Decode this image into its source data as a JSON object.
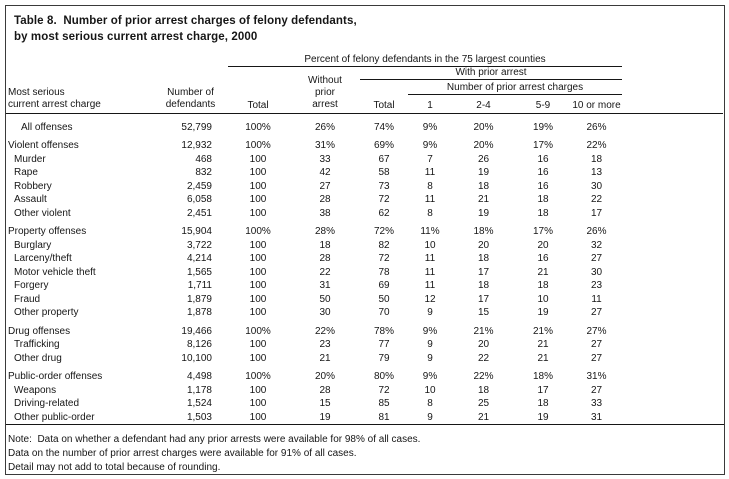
{
  "title": {
    "line1": "Table 8.  Number of prior arrest charges of felony defendants,",
    "line2": "by most serious current arrest charge, 2000"
  },
  "header": {
    "col_charge": "Most serious\ncurrent arrest charge",
    "col_defendants": "Number of\ndefendants",
    "span_percent": "Percent of felony defendants in the 75 largest counties",
    "col_total": "Total",
    "col_without": "Without\nprior\narrest",
    "span_with_prior": "With prior arrest",
    "col_with_total": "Total",
    "span_num_charges": "Number of prior arrest charges",
    "col_1": "1",
    "col_2_4": "2-4",
    "col_5_9": "5-9",
    "col_10_more": "10 or more"
  },
  "table": {
    "rows": [
      {
        "label": "All offenses",
        "type": "all",
        "values": [
          "52,799",
          "100%",
          "26%",
          "74%",
          "9%",
          "20%",
          "19%",
          "26%"
        ]
      },
      {
        "label": "Violent offenses",
        "type": "group",
        "values": [
          "12,932",
          "100%",
          "31%",
          "69%",
          "9%",
          "20%",
          "17%",
          "22%"
        ]
      },
      {
        "label": "Murder",
        "type": "leaf",
        "values": [
          "468",
          "100",
          "33",
          "67",
          "7",
          "26",
          "16",
          "18"
        ]
      },
      {
        "label": "Rape",
        "type": "leaf",
        "values": [
          "832",
          "100",
          "42",
          "58",
          "11",
          "19",
          "16",
          "13"
        ]
      },
      {
        "label": "Robbery",
        "type": "leaf",
        "values": [
          "2,459",
          "100",
          "27",
          "73",
          "8",
          "18",
          "16",
          "30"
        ]
      },
      {
        "label": "Assault",
        "type": "leaf",
        "values": [
          "6,058",
          "100",
          "28",
          "72",
          "11",
          "21",
          "18",
          "22"
        ]
      },
      {
        "label": "Other violent",
        "type": "leaf",
        "values": [
          "2,451",
          "100",
          "38",
          "62",
          "8",
          "19",
          "18",
          "17"
        ]
      },
      {
        "label": "Property offenses",
        "type": "group",
        "values": [
          "15,904",
          "100%",
          "28%",
          "72%",
          "11%",
          "18%",
          "17%",
          "26%"
        ]
      },
      {
        "label": "Burglary",
        "type": "leaf",
        "values": [
          "3,722",
          "100",
          "18",
          "82",
          "10",
          "20",
          "20",
          "32"
        ]
      },
      {
        "label": "Larceny/theft",
        "type": "leaf",
        "values": [
          "4,214",
          "100",
          "28",
          "72",
          "11",
          "18",
          "16",
          "27"
        ]
      },
      {
        "label": "Motor vehicle theft",
        "type": "leaf",
        "values": [
          "1,565",
          "100",
          "22",
          "78",
          "11",
          "17",
          "21",
          "30"
        ]
      },
      {
        "label": "Forgery",
        "type": "leaf",
        "values": [
          "1,711",
          "100",
          "31",
          "69",
          "11",
          "18",
          "18",
          "23"
        ]
      },
      {
        "label": "Fraud",
        "type": "leaf",
        "values": [
          "1,879",
          "100",
          "50",
          "50",
          "12",
          "17",
          "10",
          "11"
        ]
      },
      {
        "label": "Other property",
        "type": "leaf",
        "values": [
          "1,878",
          "100",
          "30",
          "70",
          "9",
          "15",
          "19",
          "27"
        ]
      },
      {
        "label": "Drug offenses",
        "type": "group",
        "values": [
          "19,466",
          "100%",
          "22%",
          "78%",
          "9%",
          "21%",
          "21%",
          "27%"
        ]
      },
      {
        "label": "Trafficking",
        "type": "leaf",
        "values": [
          "8,126",
          "100",
          "23",
          "77",
          "9",
          "20",
          "21",
          "27"
        ]
      },
      {
        "label": "Other drug",
        "type": "leaf",
        "values": [
          "10,100",
          "100",
          "21",
          "79",
          "9",
          "22",
          "21",
          "27"
        ]
      },
      {
        "label": "Public-order offenses",
        "type": "group",
        "values": [
          "4,498",
          "100%",
          "20%",
          "80%",
          "9%",
          "22%",
          "18%",
          "31%"
        ]
      },
      {
        "label": "Weapons",
        "type": "leaf",
        "values": [
          "1,178",
          "100",
          "28",
          "72",
          "10",
          "18",
          "17",
          "27"
        ]
      },
      {
        "label": "Driving-related",
        "type": "leaf",
        "values": [
          "1,524",
          "100",
          "15",
          "85",
          "8",
          "25",
          "18",
          "33"
        ]
      },
      {
        "label": "Other public-order",
        "type": "leaf",
        "values": [
          "1,503",
          "100",
          "19",
          "81",
          "9",
          "21",
          "19",
          "31"
        ]
      }
    ]
  },
  "notes": {
    "line1": "Note:  Data on whether a defendant had any prior arrests were available for 98% of all cases.",
    "line2": "Data on the number of prior arrest charges were available for 91% of all cases.",
    "line3": "Detail may not add to total because of rounding."
  },
  "colors": {
    "text": "#161616",
    "rule": "#161616",
    "frame_border": "#3a3a3a",
    "background": "#ffffff"
  }
}
